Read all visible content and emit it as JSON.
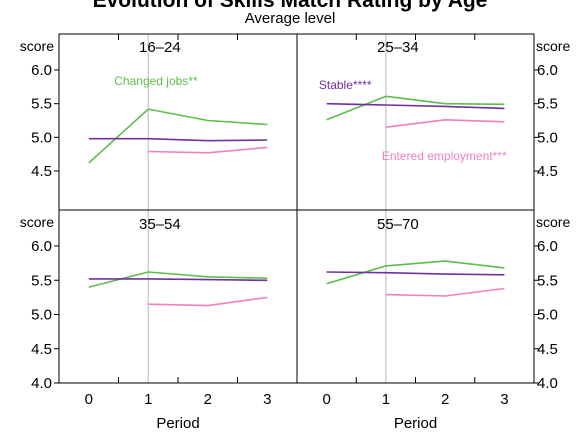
{
  "title": "Evolution of Skills Match Rating by Age",
  "subtitle": "Average level",
  "colors": {
    "changed": "#5cbf4a",
    "stable": "#7030a0",
    "entered": "#f080c0",
    "divider": "#c8c8c8",
    "frame": "#000000"
  },
  "chart_data": {
    "type": "line",
    "title": "Evolution of Skills Match Rating by Age",
    "subtitle": "Average level",
    "xlabel": "Period",
    "ylabel": "score",
    "x": [
      0,
      1,
      2,
      3
    ],
    "xlim": [
      -0.5,
      3.5
    ],
    "ylim": [
      4.0,
      6.5
    ],
    "yticks": [
      4.0,
      4.5,
      5.0,
      5.5,
      6.0
    ],
    "grid": false,
    "reference_line_x": 1,
    "panels": [
      {
        "label": "16–24",
        "series": [
          {
            "name": "Changed jobs**",
            "key": "changed",
            "x": [
              0,
              1,
              2,
              3
            ],
            "values": [
              4.62,
              5.42,
              5.25,
              5.19
            ]
          },
          {
            "name": "",
            "key": "stable",
            "x": [
              0,
              1,
              2,
              3
            ],
            "values": [
              4.98,
              4.98,
              4.95,
              4.96
            ]
          },
          {
            "name": "",
            "key": "entered",
            "x": [
              1,
              2,
              3
            ],
            "values": [
              4.79,
              4.77,
              4.85
            ]
          }
        ],
        "annotations": [
          {
            "series": "changed",
            "text": "Changed jobs**"
          }
        ]
      },
      {
        "label": "25–34",
        "series": [
          {
            "name": "",
            "key": "changed",
            "x": [
              0,
              1,
              2,
              3
            ],
            "values": [
              5.26,
              5.61,
              5.5,
              5.49
            ]
          },
          {
            "name": "Stable****",
            "key": "stable",
            "x": [
              0,
              1,
              2,
              3
            ],
            "values": [
              5.5,
              5.48,
              5.46,
              5.43
            ]
          },
          {
            "name": "Entered employment***",
            "key": "entered",
            "x": [
              1,
              2,
              3
            ],
            "values": [
              5.15,
              5.26,
              5.23
            ]
          }
        ],
        "annotations": [
          {
            "series": "stable",
            "text": "Stable****"
          },
          {
            "series": "entered",
            "text": "Entered employment***"
          }
        ]
      },
      {
        "label": "35–54",
        "series": [
          {
            "name": "",
            "key": "changed",
            "x": [
              0,
              1,
              2,
              3
            ],
            "values": [
              5.4,
              5.62,
              5.55,
              5.53
            ]
          },
          {
            "name": "",
            "key": "stable",
            "x": [
              0,
              1,
              2,
              3
            ],
            "values": [
              5.52,
              5.52,
              5.51,
              5.5
            ]
          },
          {
            "name": "",
            "key": "entered",
            "x": [
              1,
              2,
              3
            ],
            "values": [
              5.15,
              5.13,
              5.25
            ]
          }
        ],
        "annotations": []
      },
      {
        "label": "55–70",
        "series": [
          {
            "name": "",
            "key": "changed",
            "x": [
              0,
              1,
              2,
              3
            ],
            "values": [
              5.45,
              5.71,
              5.78,
              5.68
            ]
          },
          {
            "name": "",
            "key": "stable",
            "x": [
              0,
              1,
              2,
              3
            ],
            "values": [
              5.62,
              5.61,
              5.59,
              5.58
            ]
          },
          {
            "name": "",
            "key": "entered",
            "x": [
              1,
              2,
              3
            ],
            "values": [
              5.29,
              5.27,
              5.38
            ]
          }
        ],
        "annotations": []
      }
    ]
  }
}
